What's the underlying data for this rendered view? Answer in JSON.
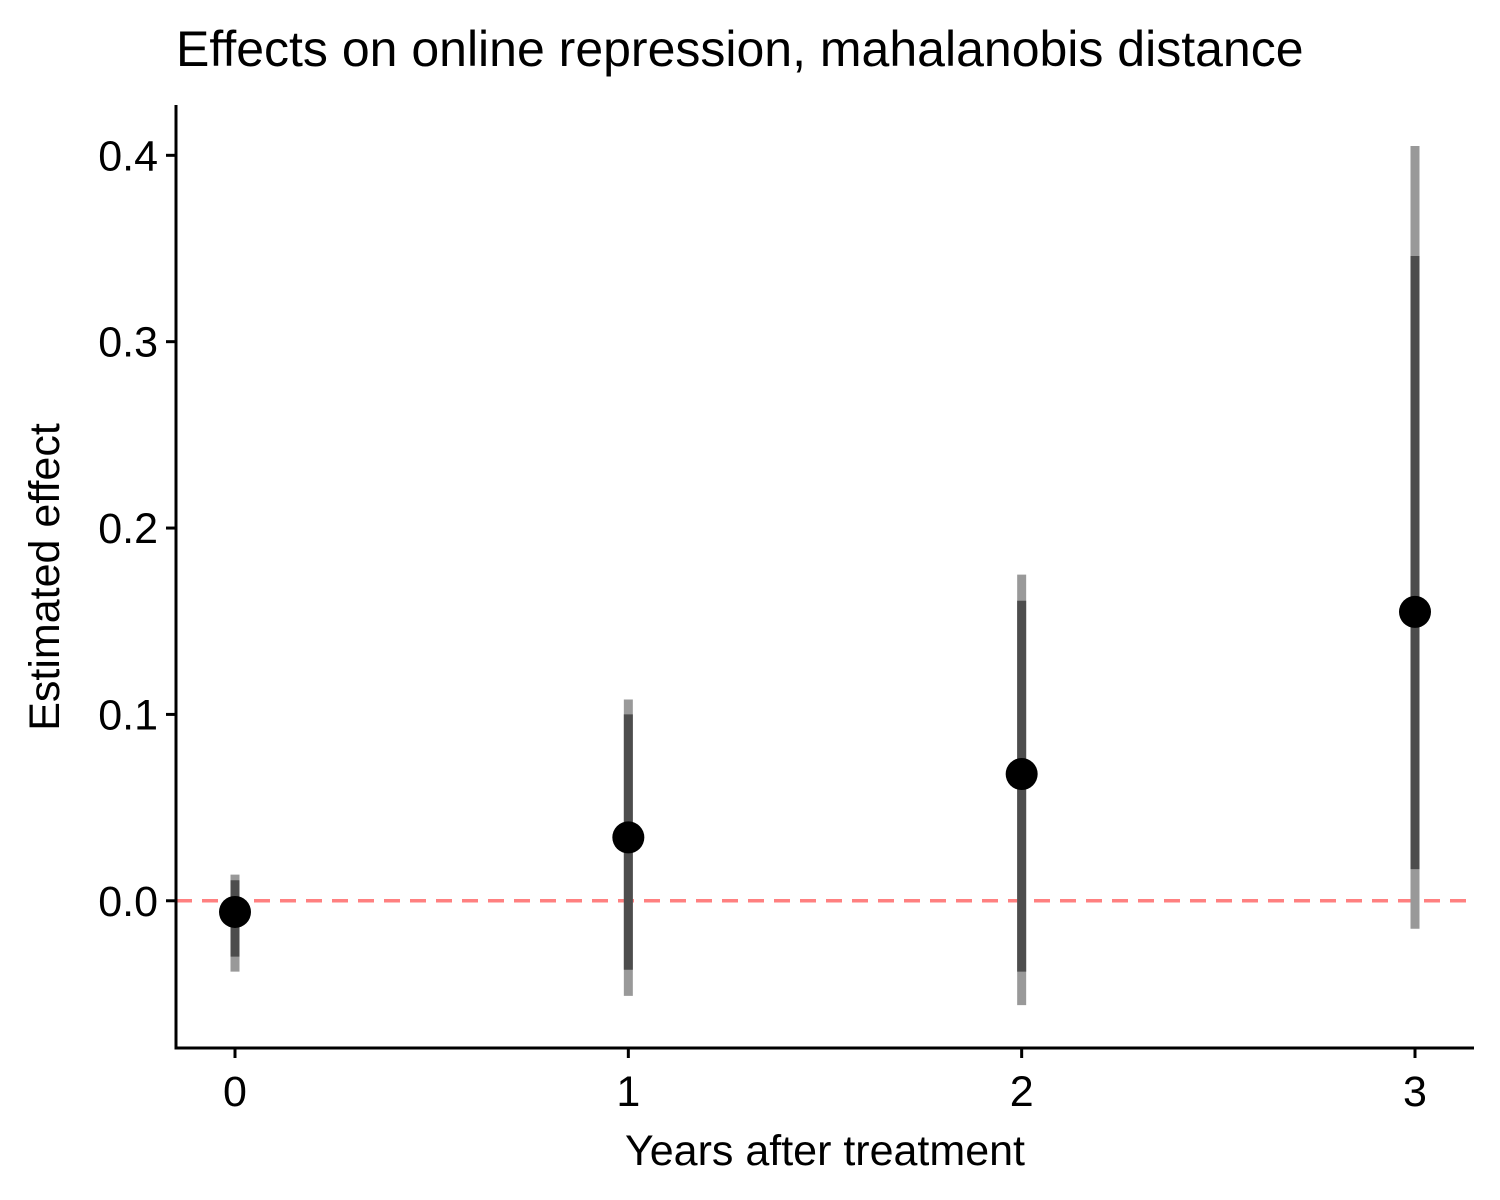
{
  "chart_data": {
    "type": "scatter",
    "title": "Effects on online repression, mahalanobis distance",
    "xlabel": "Years after treatment",
    "ylabel": "Estimated effect",
    "x_ticks": [
      "0",
      "1",
      "2",
      "3"
    ],
    "y_ticks": [
      "0.0",
      "0.1",
      "0.2",
      "0.3",
      "0.4"
    ],
    "xlim": [
      -0.15,
      3.15
    ],
    "ylim": [
      -0.079,
      0.427
    ],
    "reference_line": {
      "y": 0,
      "style": "dashed",
      "color": "#ff8080"
    },
    "points": [
      {
        "x": 0,
        "estimate": -0.006,
        "ci_inner": [
          -0.03,
          0.011
        ],
        "ci_outer": [
          -0.038,
          0.014
        ]
      },
      {
        "x": 1,
        "estimate": 0.034,
        "ci_inner": [
          -0.037,
          0.1
        ],
        "ci_outer": [
          -0.051,
          0.108
        ]
      },
      {
        "x": 2,
        "estimate": 0.068,
        "ci_inner": [
          -0.038,
          0.161
        ],
        "ci_outer": [
          -0.056,
          0.175
        ]
      },
      {
        "x": 3,
        "estimate": 0.155,
        "ci_inner": [
          0.017,
          0.346
        ],
        "ci_outer": [
          -0.015,
          0.405
        ]
      }
    ],
    "grid": false,
    "legend": "none",
    "colors": {
      "point": "#000000",
      "ci_inner": "#4d4d4d",
      "ci_outer": "#999999",
      "axis": "#000000"
    }
  }
}
